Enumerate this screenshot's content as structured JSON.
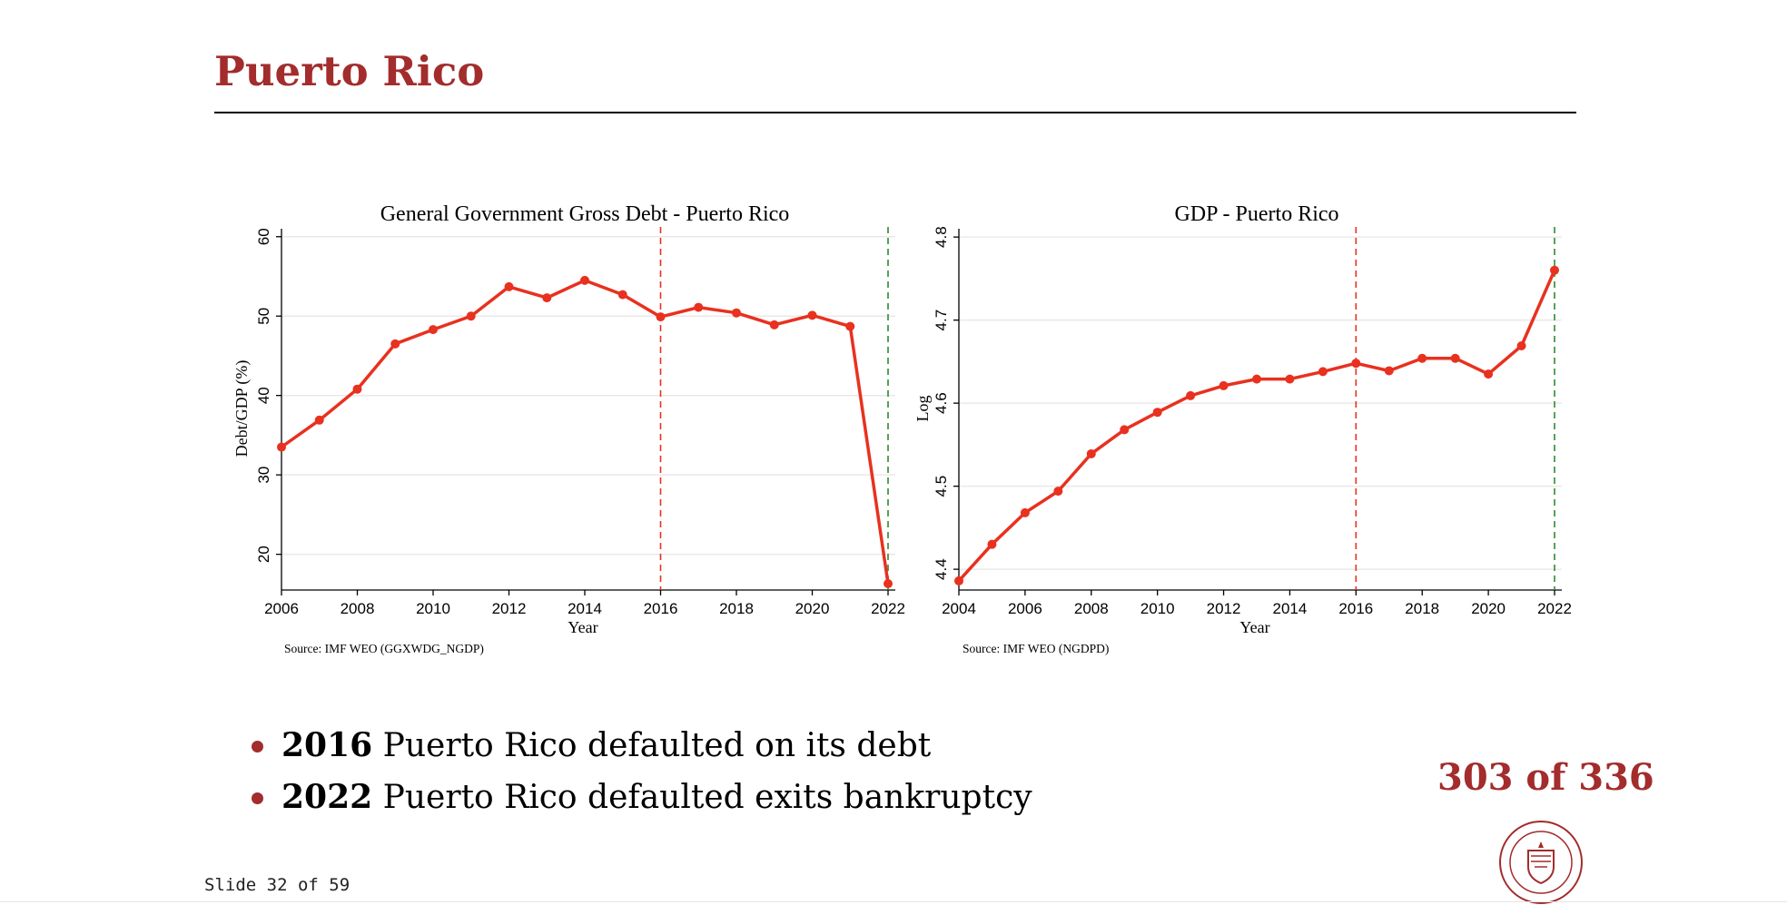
{
  "slide": {
    "title": "Puerto Rico",
    "footer": "Slide 32 of 59",
    "page_count": "303 of 336",
    "logo_text": "CARNEGIE MELLON UNIVERSITY · PITTSBURGH PENNSYLVANIA 1900"
  },
  "bullets": [
    {
      "year": "2016",
      "text": " Puerto Rico defaulted on its debt"
    },
    {
      "year": "2022",
      "text": " Puerto Rico defaulted exits bankruptcy"
    }
  ],
  "colors": {
    "brand": "#a32c2c",
    "line": "#e8311f",
    "ref2016": "#e8311f",
    "ref2022": "#2e8b2e"
  },
  "chart_data": [
    {
      "type": "line",
      "title": "General Government Gross Debt - Puerto Rico",
      "xlabel": "Year",
      "ylabel": "Debt/GDP (%)",
      "source": "Source: IMF WEO (GGXWDG_NGDP)",
      "xlim": [
        2006,
        2022
      ],
      "ylim": [
        15.5,
        61
      ],
      "xticks": [
        2006,
        2008,
        2010,
        2012,
        2014,
        2016,
        2018,
        2020,
        2022
      ],
      "yticks": [
        20,
        30,
        40,
        50,
        60
      ],
      "grid": true,
      "vlines": [
        {
          "x": 2016,
          "color": "#e8311f"
        },
        {
          "x": 2022,
          "color": "#2e8b2e"
        }
      ],
      "x": [
        2006,
        2007,
        2008,
        2009,
        2010,
        2011,
        2012,
        2013,
        2014,
        2015,
        2016,
        2017,
        2018,
        2019,
        2020,
        2021,
        2022
      ],
      "y": [
        33.5,
        36.9,
        40.8,
        46.5,
        48.3,
        50.0,
        53.7,
        52.3,
        54.5,
        52.7,
        49.9,
        51.1,
        50.4,
        48.9,
        50.1,
        48.7,
        16.3
      ]
    },
    {
      "type": "line",
      "title": "GDP - Puerto Rico",
      "xlabel": "Year",
      "ylabel": "Log",
      "source": "Source: IMF WEO (NGDPD)",
      "xlim": [
        2004,
        2022
      ],
      "ylim": [
        4.375,
        4.81
      ],
      "xticks": [
        2004,
        2006,
        2008,
        2010,
        2012,
        2014,
        2016,
        2018,
        2020,
        2022
      ],
      "yticks": [
        4.4,
        4.5,
        4.6,
        4.7,
        4.8
      ],
      "grid": true,
      "vlines": [
        {
          "x": 2016,
          "color": "#e8311f"
        },
        {
          "x": 2022,
          "color": "#2e8b2e"
        }
      ],
      "x": [
        2004,
        2005,
        2006,
        2007,
        2008,
        2009,
        2010,
        2011,
        2012,
        2013,
        2014,
        2015,
        2016,
        2017,
        2018,
        2019,
        2020,
        2021,
        2022
      ],
      "y": [
        4.386,
        4.43,
        4.468,
        4.494,
        4.539,
        4.568,
        4.589,
        4.609,
        4.621,
        4.629,
        4.629,
        4.638,
        4.648,
        4.639,
        4.654,
        4.654,
        4.635,
        4.669,
        4.76
      ]
    }
  ]
}
